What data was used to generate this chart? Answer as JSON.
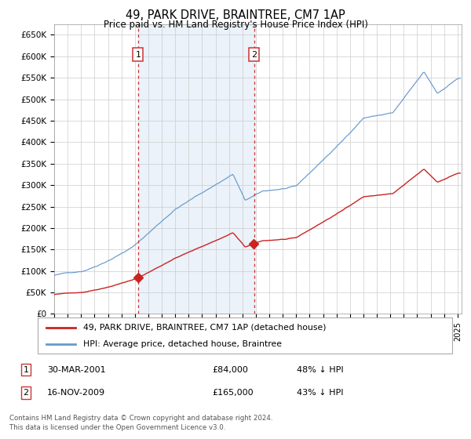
{
  "title": "49, PARK DRIVE, BRAINTREE, CM7 1AP",
  "subtitle": "Price paid vs. HM Land Registry's House Price Index (HPI)",
  "legend_line1": "49, PARK DRIVE, BRAINTREE, CM7 1AP (detached house)",
  "legend_line2": "HPI: Average price, detached house, Braintree",
  "annotation1_label": "1",
  "annotation1_date": "30-MAR-2001",
  "annotation1_price": "£84,000",
  "annotation1_pct": "48% ↓ HPI",
  "annotation1_year": 2001.24,
  "annotation1_value": 84000,
  "annotation2_label": "2",
  "annotation2_date": "16-NOV-2009",
  "annotation2_price": "£165,000",
  "annotation2_pct": "43% ↓ HPI",
  "annotation2_year": 2009.87,
  "annotation2_value": 165000,
  "footer1": "Contains HM Land Registry data © Crown copyright and database right 2024.",
  "footer2": "This data is licensed under the Open Government Licence v3.0.",
  "ylim": [
    0,
    675000
  ],
  "yticks": [
    0,
    50000,
    100000,
    150000,
    200000,
    250000,
    300000,
    350000,
    400000,
    450000,
    500000,
    550000,
    600000,
    650000
  ],
  "hpi_color": "#6699cc",
  "price_color": "#cc2222",
  "marker_color": "#cc2222",
  "bg_color": "#dce8f5",
  "grid_color": "#cccccc",
  "shaded_start": 2001.24,
  "shaded_end": 2009.87,
  "xlim_start": 1995.0,
  "xlim_end": 2025.3
}
